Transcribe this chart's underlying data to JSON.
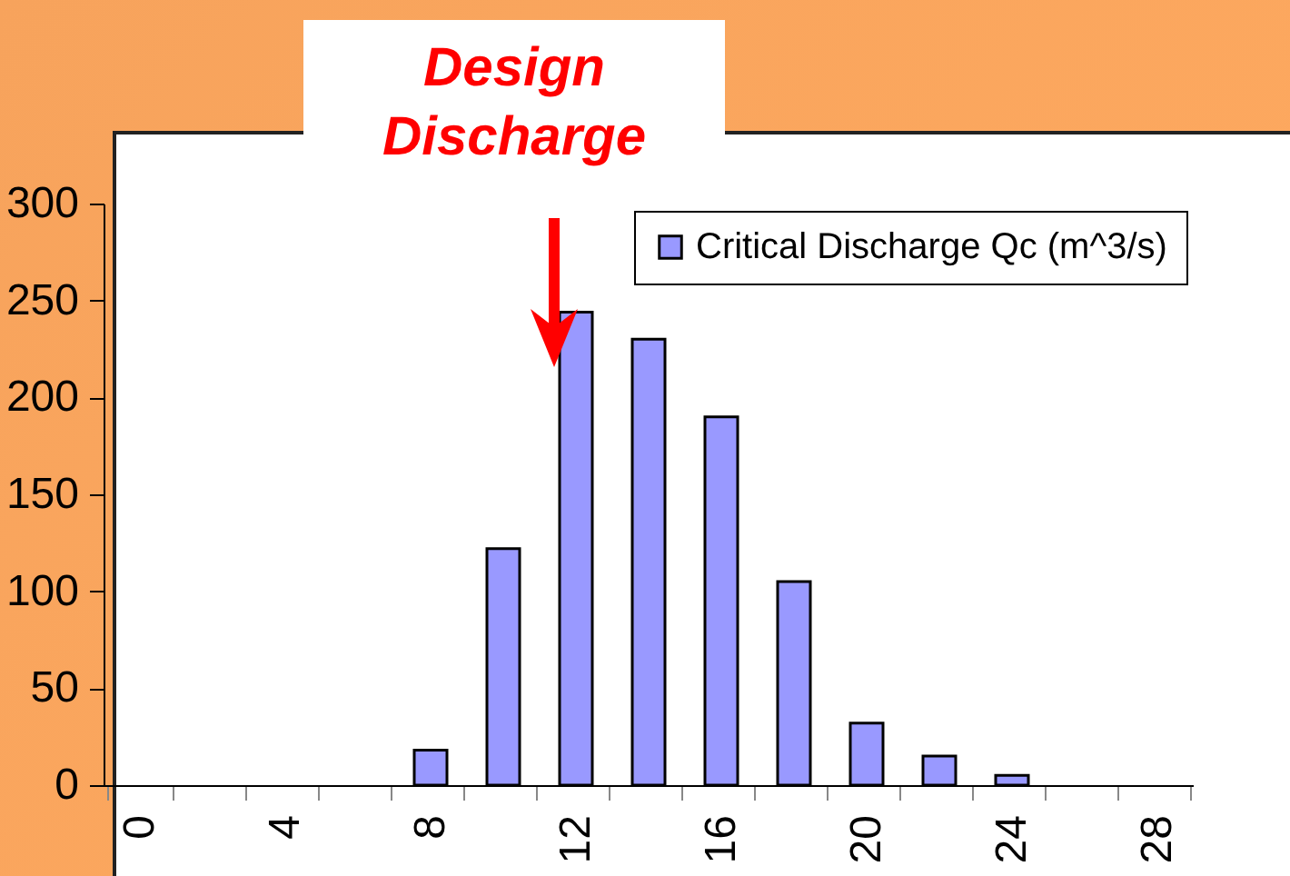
{
  "chart_data": {
    "type": "bar",
    "annotations": [
      "Design Discharge"
    ],
    "categories": [
      "0",
      null,
      "4",
      null,
      "8",
      null,
      "12",
      null,
      "16",
      null,
      "20",
      null,
      "24",
      null,
      "28"
    ],
    "series": [
      {
        "name": "Critical Discharge Qc (m^3/s)",
        "color": "#9999ff",
        "values": [
          null,
          null,
          null,
          null,
          18,
          122,
          244,
          230,
          190,
          105,
          32,
          15,
          5,
          null,
          null
        ]
      }
    ],
    "ylim": [
      0,
      300
    ],
    "yticks": [
      0,
      50,
      100,
      150,
      200,
      250,
      300
    ],
    "grid": false,
    "legend": "top right"
  }
}
